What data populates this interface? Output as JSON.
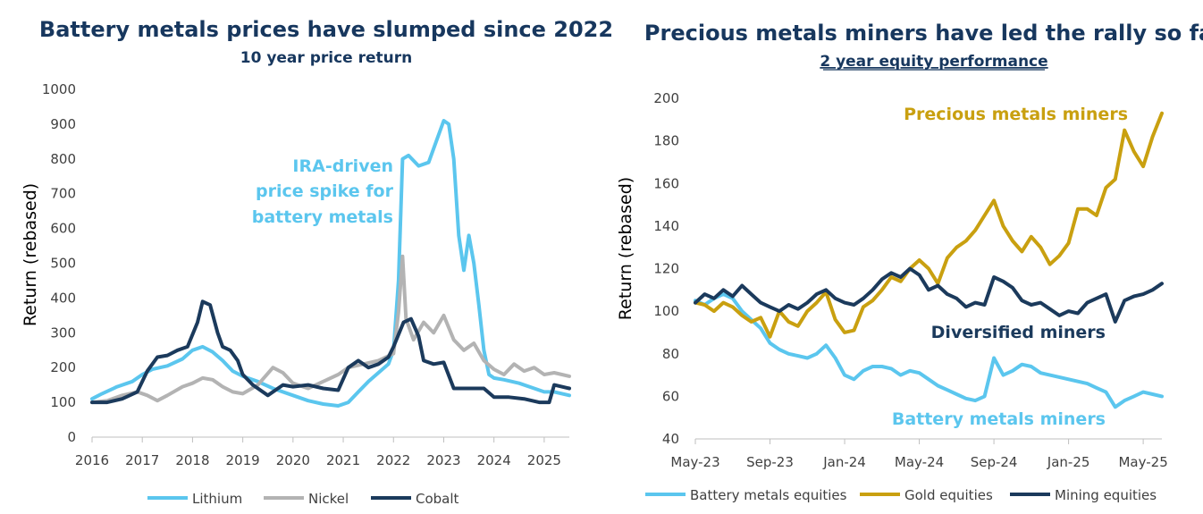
{
  "chart_data": [
    {
      "type": "line",
      "title": "Battery metals prices have slumped since 2022",
      "subtitle": "10 year price return",
      "ylabel": "Return (rebased)",
      "xlabel": "",
      "ylim": [
        0,
        1000
      ],
      "yticks": [
        0,
        100,
        200,
        300,
        400,
        500,
        600,
        700,
        800,
        900,
        1000
      ],
      "xlim": [
        2016,
        2025.5
      ],
      "xticks": [
        "2016",
        "2017",
        "2018",
        "2019",
        "2020",
        "2021",
        "2022",
        "2023",
        "2024",
        "2025"
      ],
      "grid": false,
      "legend": "bottom",
      "series": [
        {
          "name": "Lithium",
          "color": "#5bc6ee",
          "x": [
            2016,
            2016.2,
            2016.5,
            2016.8,
            2017,
            2017.2,
            2017.5,
            2017.8,
            2018,
            2018.2,
            2018.4,
            2018.6,
            2018.8,
            2019,
            2019.3,
            2019.6,
            2020,
            2020.3,
            2020.6,
            2020.9,
            2021.1,
            2021.3,
            2021.5,
            2021.7,
            2021.9,
            2022,
            2022.1,
            2022.18,
            2022.3,
            2022.5,
            2022.7,
            2022.85,
            2023.0,
            2023.1,
            2023.2,
            2023.3,
            2023.4,
            2023.5,
            2023.6,
            2023.7,
            2023.8,
            2023.9,
            2024,
            2024.2,
            2024.5,
            2024.8,
            2025,
            2025.2,
            2025.5
          ],
          "y": [
            110,
            125,
            145,
            160,
            180,
            195,
            205,
            225,
            250,
            260,
            245,
            220,
            190,
            175,
            160,
            140,
            120,
            105,
            95,
            90,
            100,
            130,
            160,
            185,
            210,
            250,
            450,
            800,
            810,
            780,
            790,
            850,
            910,
            900,
            800,
            580,
            480,
            580,
            500,
            380,
            250,
            180,
            170,
            165,
            155,
            140,
            130,
            130,
            120
          ]
        },
        {
          "name": "Nickel",
          "color": "#b3b3b3",
          "x": [
            2016,
            2016.3,
            2016.6,
            2016.9,
            2017.1,
            2017.3,
            2017.5,
            2017.8,
            2018,
            2018.2,
            2018.4,
            2018.6,
            2018.8,
            2019,
            2019.3,
            2019.6,
            2019.8,
            2020,
            2020.3,
            2020.6,
            2020.9,
            2021.1,
            2021.4,
            2021.7,
            2022,
            2022.1,
            2022.18,
            2022.25,
            2022.4,
            2022.6,
            2022.8,
            2023,
            2023.2,
            2023.4,
            2023.6,
            2023.8,
            2024,
            2024.2,
            2024.4,
            2024.6,
            2024.8,
            2025,
            2025.2,
            2025.5
          ],
          "y": [
            100,
            105,
            120,
            130,
            120,
            105,
            120,
            145,
            155,
            170,
            165,
            145,
            130,
            125,
            150,
            200,
            185,
            155,
            140,
            160,
            180,
            200,
            210,
            220,
            240,
            360,
            520,
            340,
            280,
            330,
            300,
            350,
            280,
            250,
            270,
            220,
            195,
            180,
            210,
            190,
            200,
            180,
            185,
            175
          ]
        },
        {
          "name": "Cobalt",
          "color": "#1b3a5c",
          "x": [
            2016,
            2016.3,
            2016.6,
            2016.9,
            2017.1,
            2017.3,
            2017.5,
            2017.7,
            2017.9,
            2018.1,
            2018.2,
            2018.35,
            2018.5,
            2018.6,
            2018.75,
            2018.9,
            2019,
            2019.2,
            2019.5,
            2019.8,
            2020,
            2020.3,
            2020.6,
            2020.9,
            2021.1,
            2021.3,
            2021.5,
            2021.7,
            2021.9,
            2022,
            2022.2,
            2022.35,
            2022.5,
            2022.6,
            2022.8,
            2023,
            2023.2,
            2023.5,
            2023.8,
            2024,
            2024.3,
            2024.6,
            2024.9,
            2025.1,
            2025.2,
            2025.5
          ],
          "y": [
            100,
            100,
            110,
            130,
            190,
            230,
            235,
            250,
            260,
            330,
            390,
            380,
            300,
            260,
            250,
            220,
            180,
            150,
            120,
            150,
            145,
            150,
            140,
            135,
            200,
            220,
            200,
            210,
            230,
            260,
            330,
            340,
            290,
            220,
            210,
            215,
            140,
            140,
            140,
            115,
            115,
            110,
            100,
            100,
            150,
            140
          ]
        }
      ],
      "annotations": [
        {
          "text": [
            "IRA-driven",
            "price spike for",
            "battery metals"
          ],
          "color": "#5bc6ee"
        }
      ]
    },
    {
      "type": "line",
      "title": "Precious metals miners have led the rally so far",
      "subtitle": "2 year equity performance",
      "ylabel": "Return (rebased)",
      "xlabel": "",
      "ylim": [
        40,
        200
      ],
      "yticks": [
        40,
        60,
        80,
        100,
        120,
        140,
        160,
        180,
        200
      ],
      "xlim": [
        0,
        25
      ],
      "xtick_pos": [
        0,
        4,
        8,
        12,
        16,
        20,
        24
      ],
      "xticks": [
        "May-23",
        "Sep-23",
        "Jan-24",
        "May-24",
        "Sep-24",
        "Jan-25",
        "May-25"
      ],
      "grid": false,
      "legend": "bottom",
      "series": [
        {
          "name": "Battery metals equities",
          "color": "#5bc6ee",
          "x": [
            0,
            0.5,
            1,
            1.5,
            2,
            2.5,
            3,
            3.5,
            4,
            4.5,
            5,
            5.5,
            6,
            6.5,
            7,
            7.5,
            8,
            8.5,
            9,
            9.5,
            10,
            10.5,
            11,
            11.5,
            12,
            12.5,
            13,
            13.5,
            14,
            14.5,
            15,
            15.5,
            16,
            16.5,
            17,
            17.5,
            18,
            18.5,
            19,
            19.5,
            20,
            20.5,
            21,
            21.5,
            22,
            22.5,
            23,
            23.5,
            24,
            24.5,
            25
          ],
          "y": [
            105,
            103,
            106,
            108,
            106,
            100,
            96,
            92,
            85,
            82,
            80,
            79,
            78,
            80,
            84,
            78,
            70,
            68,
            72,
            74,
            74,
            73,
            70,
            72,
            71,
            68,
            65,
            63,
            61,
            59,
            58,
            60,
            78,
            70,
            72,
            75,
            74,
            71,
            70,
            69,
            68,
            67,
            66,
            64,
            62,
            55,
            58,
            60,
            62,
            61,
            60
          ]
        },
        {
          "name": "Gold equities",
          "color": "#c9a010",
          "x": [
            0,
            0.5,
            1,
            1.5,
            2,
            2.5,
            3,
            3.5,
            4,
            4.5,
            5,
            5.5,
            6,
            6.5,
            7,
            7.5,
            8,
            8.5,
            9,
            9.5,
            10,
            10.5,
            11,
            11.5,
            12,
            12.5,
            13,
            13.5,
            14,
            14.5,
            15,
            15.5,
            16,
            16.5,
            17,
            17.5,
            18,
            18.5,
            19,
            19.5,
            20,
            20.5,
            21,
            21.5,
            22,
            22.5,
            23,
            23.5,
            24,
            24.5,
            25
          ],
          "y": [
            104,
            103,
            100,
            104,
            102,
            98,
            95,
            97,
            88,
            100,
            95,
            93,
            100,
            104,
            109,
            96,
            90,
            91,
            102,
            105,
            110,
            116,
            114,
            120,
            124,
            120,
            113,
            125,
            130,
            133,
            138,
            145,
            152,
            140,
            133,
            128,
            135,
            130,
            122,
            126,
            132,
            148,
            148,
            145,
            158,
            162,
            185,
            175,
            168,
            182,
            193
          ]
        },
        {
          "name": "Mining equities",
          "color": "#1b3a5c",
          "x": [
            0,
            0.5,
            1,
            1.5,
            2,
            2.5,
            3,
            3.5,
            4,
            4.5,
            5,
            5.5,
            6,
            6.5,
            7,
            7.5,
            8,
            8.5,
            9,
            9.5,
            10,
            10.5,
            11,
            11.5,
            12,
            12.5,
            13,
            13.5,
            14,
            14.5,
            15,
            15.5,
            16,
            16.5,
            17,
            17.5,
            18,
            18.5,
            19,
            19.5,
            20,
            20.5,
            21,
            21.5,
            22,
            22.5,
            23,
            23.5,
            24,
            24.5,
            25
          ],
          "y": [
            104,
            108,
            106,
            110,
            107,
            112,
            108,
            104,
            102,
            100,
            103,
            101,
            104,
            108,
            110,
            106,
            104,
            103,
            106,
            110,
            115,
            118,
            116,
            120,
            117,
            110,
            112,
            108,
            106,
            102,
            104,
            103,
            116,
            114,
            111,
            105,
            103,
            104,
            101,
            98,
            100,
            99,
            104,
            106,
            108,
            95,
            105,
            107,
            108,
            110,
            113
          ]
        }
      ],
      "annotations": [
        {
          "text": [
            "Precious metals miners"
          ],
          "color": "#c9a010"
        },
        {
          "text": [
            "Diversified miners"
          ],
          "color": "#1b3a5c"
        },
        {
          "text": [
            "Battery metals miners"
          ],
          "color": "#5bc6ee"
        }
      ]
    }
  ]
}
